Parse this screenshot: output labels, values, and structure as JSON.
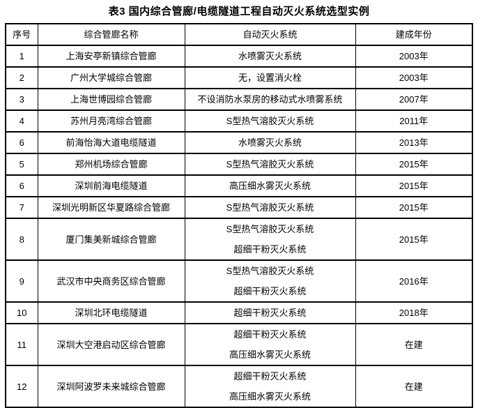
{
  "title": "表3 国内综合管廊/电缆隧道工程自动灭火系统选型实例",
  "colors": {
    "background": "#ffffff",
    "border": "#000000",
    "text": "#000000"
  },
  "table": {
    "columns": [
      "序号",
      "综合管廊名称",
      "自动灭火系统",
      "建成年份"
    ],
    "rows": [
      {
        "no": "1",
        "name": "上海安亭新镇综合管廊",
        "systems": [
          "水喷雾灭火系统"
        ],
        "year": "2003年"
      },
      {
        "no": "2",
        "name": "广州大学城综合管廊",
        "systems": [
          "无，设置消火栓"
        ],
        "year": "2003年"
      },
      {
        "no": "3",
        "name": "上海世博园综合管廊",
        "systems": [
          "不设消防水泵房的移动式水喷雾系统"
        ],
        "year": "2007年"
      },
      {
        "no": "4",
        "name": "苏州月亮湾综合管廊",
        "systems": [
          "S型热气溶胶灭火系统"
        ],
        "year": "2011年"
      },
      {
        "no": "6",
        "name": "前海怡海大道电缆隧道",
        "systems": [
          "水喷雾灭火系统"
        ],
        "year": "2013年"
      },
      {
        "no": "5",
        "name": "郑州机场综合管廊",
        "systems": [
          "S型热气溶胶灭火系统"
        ],
        "year": "2015年"
      },
      {
        "no": "6",
        "name": "深圳前海电缆隧道",
        "systems": [
          "高压细水雾灭火系统"
        ],
        "year": "2015年"
      },
      {
        "no": "7",
        "name": "深圳光明新区华夏路综合管廊",
        "systems": [
          "S型热气溶胶灭火系统"
        ],
        "year": "2015年"
      },
      {
        "no": "8",
        "name": "厦门集美新城综合管廊",
        "systems": [
          "S型热气溶胶灭火系统",
          "超细干粉灭火系统"
        ],
        "year": "2015年"
      },
      {
        "no": "9",
        "name": "武汉市中央商务区综合管廊",
        "systems": [
          "S型热气溶胶灭火系统",
          "超细干粉灭火系统"
        ],
        "year": "2016年"
      },
      {
        "no": "10",
        "name": "深圳北环电缆隧道",
        "systems": [
          "超细干粉灭火系统"
        ],
        "year": "2018年"
      },
      {
        "no": "11",
        "name": "深圳大空港启动区综合管廊",
        "systems": [
          "超细干粉灭火系统",
          "高压细水雾灭火系统"
        ],
        "year": "在建"
      },
      {
        "no": "12",
        "name": "深圳阿波罗未来城综合管廊",
        "systems": [
          "超细干粉灭火系统",
          "高压细水雾灭火系统"
        ],
        "year": "在建"
      }
    ]
  }
}
